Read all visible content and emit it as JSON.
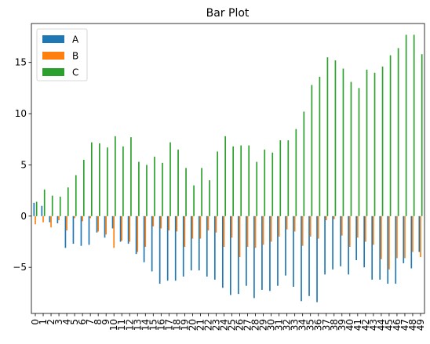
{
  "chart_data": {
    "type": "bar",
    "title": "Bar Plot",
    "xlabel": "",
    "ylabel": "",
    "categories": [
      "0",
      "1",
      "2",
      "3",
      "4",
      "5",
      "6",
      "7",
      "8",
      "9",
      "10",
      "11",
      "12",
      "13",
      "14",
      "15",
      "16",
      "17",
      "18",
      "19",
      "20",
      "21",
      "22",
      "23",
      "24",
      "25",
      "26",
      "27",
      "28",
      "29",
      "30",
      "31",
      "32",
      "33",
      "34",
      "35",
      "36",
      "37",
      "38",
      "39",
      "40",
      "41",
      "42",
      "43",
      "44",
      "45",
      "46",
      "47",
      "48",
      "49"
    ],
    "ylim": [
      -9.5,
      18.8
    ],
    "yticks": [
      -5,
      0,
      5,
      10,
      15
    ],
    "grid": false,
    "legend": {
      "position": "top-left"
    },
    "series": [
      {
        "name": "A",
        "color": "#1f77b4",
        "values": [
          1.3,
          1.0,
          -0.6,
          -0.7,
          -3.1,
          -2.7,
          -2.9,
          -2.8,
          -1.6,
          -2.1,
          -1.2,
          -2.5,
          -2.7,
          -3.7,
          -4.5,
          -5.4,
          -6.6,
          -6.3,
          -6.3,
          -5.9,
          -5.3,
          -5.3,
          -5.9,
          -6.2,
          -7.0,
          -7.7,
          -7.6,
          -6.8,
          -8.0,
          -7.2,
          -7.3,
          -6.8,
          -5.8,
          -6.9,
          -8.3,
          -7.8,
          -8.4,
          -5.7,
          -5.2,
          -4.9,
          -5.7,
          -4.3,
          -5.0,
          -6.2,
          -6.2,
          -6.6,
          -6.6,
          -4.6,
          -5.1,
          -3.5
        ]
      },
      {
        "name": "B",
        "color": "#ff7f0e",
        "values": [
          -0.8,
          -0.6,
          -1.1,
          -0.4,
          -1.4,
          -0.2,
          -0.5,
          -0.2,
          -1.5,
          -1.8,
          -3.1,
          -2.4,
          -2.5,
          -3.5,
          -3.0,
          -1.0,
          -1.2,
          -1.4,
          -1.5,
          -3.0,
          -2.2,
          -2.2,
          -1.4,
          -1.6,
          -3.0,
          -2.1,
          -4.0,
          -3.0,
          -3.1,
          -2.8,
          -2.5,
          -2.0,
          -1.3,
          -1.5,
          -2.9,
          -2.0,
          -2.2,
          -0.4,
          -0.3,
          -1.9,
          -3.0,
          -2.1,
          -2.5,
          -2.8,
          -4.2,
          -5.2,
          -4.1,
          -4.1,
          -3.5,
          -4.0
        ]
      },
      {
        "name": "C",
        "color": "#2ca02c",
        "values": [
          1.4,
          2.6,
          2.0,
          1.9,
          2.8,
          4.0,
          5.5,
          7.2,
          7.1,
          6.7,
          7.8,
          6.8,
          7.7,
          5.3,
          5.0,
          5.8,
          5.2,
          7.2,
          6.5,
          4.7,
          3.0,
          4.7,
          3.5,
          6.3,
          7.8,
          6.8,
          6.9,
          6.9,
          5.3,
          6.5,
          6.2,
          7.4,
          7.4,
          8.5,
          10.2,
          12.8,
          13.6,
          15.5,
          15.2,
          14.4,
          13.1,
          12.5,
          14.3,
          14.0,
          14.6,
          15.7,
          16.4,
          17.7,
          17.7,
          15.8
        ]
      }
    ]
  }
}
